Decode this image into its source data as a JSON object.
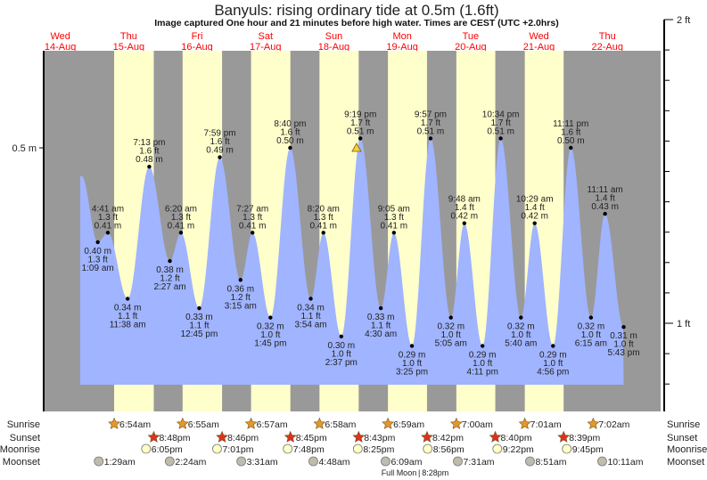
{
  "title": "Banyuls: rising  ordinary tide at 0.5m (1.6ft)",
  "subtitle": "Image captured One hour and 21 minutes before high water. Times are CEST (UTC +2.0hrs)",
  "colors": {
    "night": "#999999",
    "day": "#ffffcc",
    "water": "#a0b4ff",
    "day_label": "#ff0000",
    "sunrise": "#e8962a",
    "sunset": "#e03020",
    "moonrise": "#ffffc8",
    "moonset": "#c0bcac"
  },
  "chart_data": {
    "type": "area",
    "title": "Banyuls: rising  ordinary tide at 0.5m (1.6ft)",
    "left_axis": {
      "unit": "m",
      "tick_label": "0.5 m"
    },
    "right_axis": {
      "unit": "ft",
      "tick_labels": [
        "2 ft",
        "1 ft"
      ]
    },
    "ylim_m": [
      0.22,
      0.6
    ],
    "current_marker": {
      "date": "18-Aug",
      "time": "7:58 pm",
      "m": 0.5,
      "icon": "warning-triangle-icon"
    },
    "days": [
      {
        "weekday": "Wed",
        "date": "14-Aug"
      },
      {
        "weekday": "Thu",
        "date": "15-Aug"
      },
      {
        "weekday": "Fri",
        "date": "16-Aug"
      },
      {
        "weekday": "Sat",
        "date": "17-Aug"
      },
      {
        "weekday": "Sun",
        "date": "18-Aug"
      },
      {
        "weekday": "Mon",
        "date": "19-Aug"
      },
      {
        "weekday": "Tue",
        "date": "20-Aug"
      },
      {
        "weekday": "Wed",
        "date": "21-Aug"
      },
      {
        "weekday": "Thu",
        "date": "22-Aug"
      }
    ],
    "tides": [
      {
        "date": "15-Aug",
        "type": "low",
        "time": "1:09 am",
        "m": 0.4,
        "ft": "1.3 ft"
      },
      {
        "date": "15-Aug",
        "type": "high",
        "time": "4:41 am",
        "m": 0.41,
        "ft": "1.3 ft"
      },
      {
        "date": "15-Aug",
        "type": "low",
        "time": "11:38 am",
        "m": 0.34,
        "ft": "1.1 ft"
      },
      {
        "date": "15-Aug",
        "type": "high",
        "time": "7:13 pm",
        "m": 0.48,
        "ft": "1.6 ft"
      },
      {
        "date": "16-Aug",
        "type": "low",
        "time": "2:27 am",
        "m": 0.38,
        "ft": "1.2 ft"
      },
      {
        "date": "16-Aug",
        "type": "high",
        "time": "6:20 am",
        "m": 0.41,
        "ft": "1.3 ft"
      },
      {
        "date": "16-Aug",
        "type": "low",
        "time": "12:45 pm",
        "m": 0.33,
        "ft": "1.1 ft"
      },
      {
        "date": "16-Aug",
        "type": "high",
        "time": "7:59 pm",
        "m": 0.49,
        "ft": "1.6 ft"
      },
      {
        "date": "17-Aug",
        "type": "low",
        "time": "3:15 am",
        "m": 0.36,
        "ft": "1.2 ft"
      },
      {
        "date": "17-Aug",
        "type": "high",
        "time": "7:27 am",
        "m": 0.41,
        "ft": "1.3 ft"
      },
      {
        "date": "17-Aug",
        "type": "low",
        "time": "1:45 pm",
        "m": 0.32,
        "ft": "1.0 ft"
      },
      {
        "date": "17-Aug",
        "type": "high",
        "time": "8:40 pm",
        "m": 0.5,
        "ft": "1.6 ft"
      },
      {
        "date": "18-Aug",
        "type": "low",
        "time": "3:54 am",
        "m": 0.34,
        "ft": "1.1 ft"
      },
      {
        "date": "18-Aug",
        "type": "high",
        "time": "8:20 am",
        "m": 0.41,
        "ft": "1.3 ft"
      },
      {
        "date": "18-Aug",
        "type": "low",
        "time": "2:37 pm",
        "m": 0.3,
        "ft": "1.0 ft"
      },
      {
        "date": "18-Aug",
        "type": "high",
        "time": "9:19 pm",
        "m": 0.51,
        "ft": "1.7 ft"
      },
      {
        "date": "19-Aug",
        "type": "low",
        "time": "4:30 am",
        "m": 0.33,
        "ft": "1.1 ft"
      },
      {
        "date": "19-Aug",
        "type": "high",
        "time": "9:05 am",
        "m": 0.41,
        "ft": "1.3 ft"
      },
      {
        "date": "19-Aug",
        "type": "low",
        "time": "3:25 pm",
        "m": 0.29,
        "ft": "1.0 ft"
      },
      {
        "date": "19-Aug",
        "type": "high",
        "time": "9:57 pm",
        "m": 0.51,
        "ft": "1.7 ft"
      },
      {
        "date": "20-Aug",
        "type": "low",
        "time": "5:05 am",
        "m": 0.32,
        "ft": "1.0 ft"
      },
      {
        "date": "20-Aug",
        "type": "high",
        "time": "9:48 am",
        "m": 0.42,
        "ft": "1.4 ft"
      },
      {
        "date": "20-Aug",
        "type": "low",
        "time": "4:11 pm",
        "m": 0.29,
        "ft": "1.0 ft"
      },
      {
        "date": "20-Aug",
        "type": "high",
        "time": "10:34 pm",
        "m": 0.51,
        "ft": "1.7 ft"
      },
      {
        "date": "21-Aug",
        "type": "low",
        "time": "5:40 am",
        "m": 0.32,
        "ft": "1.0 ft"
      },
      {
        "date": "21-Aug",
        "type": "high",
        "time": "10:29 am",
        "m": 0.42,
        "ft": "1.4 ft"
      },
      {
        "date": "21-Aug",
        "type": "low",
        "time": "4:56 pm",
        "m": 0.29,
        "ft": "1.0 ft"
      },
      {
        "date": "21-Aug",
        "type": "high",
        "time": "11:11 pm",
        "m": 0.5,
        "ft": "1.6 ft"
      },
      {
        "date": "22-Aug",
        "type": "low",
        "time": "6:15 am",
        "m": 0.32,
        "ft": "1.0 ft"
      },
      {
        "date": "22-Aug",
        "type": "high",
        "time": "11:11 am",
        "m": 0.43,
        "ft": "1.4 ft"
      },
      {
        "date": "22-Aug",
        "type": "low",
        "time": "5:43 pm",
        "m": 0.31,
        "ft": "1.0 ft"
      }
    ]
  },
  "astro": {
    "row_labels": {
      "sunrise": "Sunrise",
      "sunset": "Sunset",
      "moonrise": "Moonrise",
      "moonset": "Moonset"
    },
    "sunrise": [
      {
        "date": "15-Aug",
        "time": "6:54am"
      },
      {
        "date": "16-Aug",
        "time": "6:55am"
      },
      {
        "date": "17-Aug",
        "time": "6:57am"
      },
      {
        "date": "18-Aug",
        "time": "6:58am"
      },
      {
        "date": "19-Aug",
        "time": "6:59am"
      },
      {
        "date": "20-Aug",
        "time": "7:00am"
      },
      {
        "date": "21-Aug",
        "time": "7:01am"
      },
      {
        "date": "22-Aug",
        "time": "7:02am"
      }
    ],
    "sunset": [
      {
        "date": "15-Aug",
        "time": "8:48pm"
      },
      {
        "date": "16-Aug",
        "time": "8:46pm"
      },
      {
        "date": "17-Aug",
        "time": "8:45pm"
      },
      {
        "date": "18-Aug",
        "time": "8:43pm"
      },
      {
        "date": "19-Aug",
        "time": "8:42pm"
      },
      {
        "date": "20-Aug",
        "time": "8:40pm"
      },
      {
        "date": "21-Aug",
        "time": "8:39pm"
      }
    ],
    "moonrise": [
      {
        "date": "15-Aug",
        "time": "6:05pm"
      },
      {
        "date": "16-Aug",
        "time": "7:01pm"
      },
      {
        "date": "17-Aug",
        "time": "7:48pm"
      },
      {
        "date": "18-Aug",
        "time": "8:25pm"
      },
      {
        "date": "19-Aug",
        "time": "8:56pm"
      },
      {
        "date": "20-Aug",
        "time": "9:22pm"
      },
      {
        "date": "21-Aug",
        "time": "9:45pm"
      }
    ],
    "moonset": [
      {
        "date": "15-Aug",
        "time": "1:29am"
      },
      {
        "date": "16-Aug",
        "time": "2:24am"
      },
      {
        "date": "17-Aug",
        "time": "3:31am"
      },
      {
        "date": "18-Aug",
        "time": "4:48am"
      },
      {
        "date": "19-Aug",
        "time": "6:09am"
      },
      {
        "date": "20-Aug",
        "time": "7:31am"
      },
      {
        "date": "21-Aug",
        "time": "8:51am"
      },
      {
        "date": "22-Aug",
        "time": "10:11am"
      }
    ],
    "moon_phase": {
      "label": "Full Moon",
      "time": "8:28pm",
      "date": "19-Aug"
    }
  }
}
